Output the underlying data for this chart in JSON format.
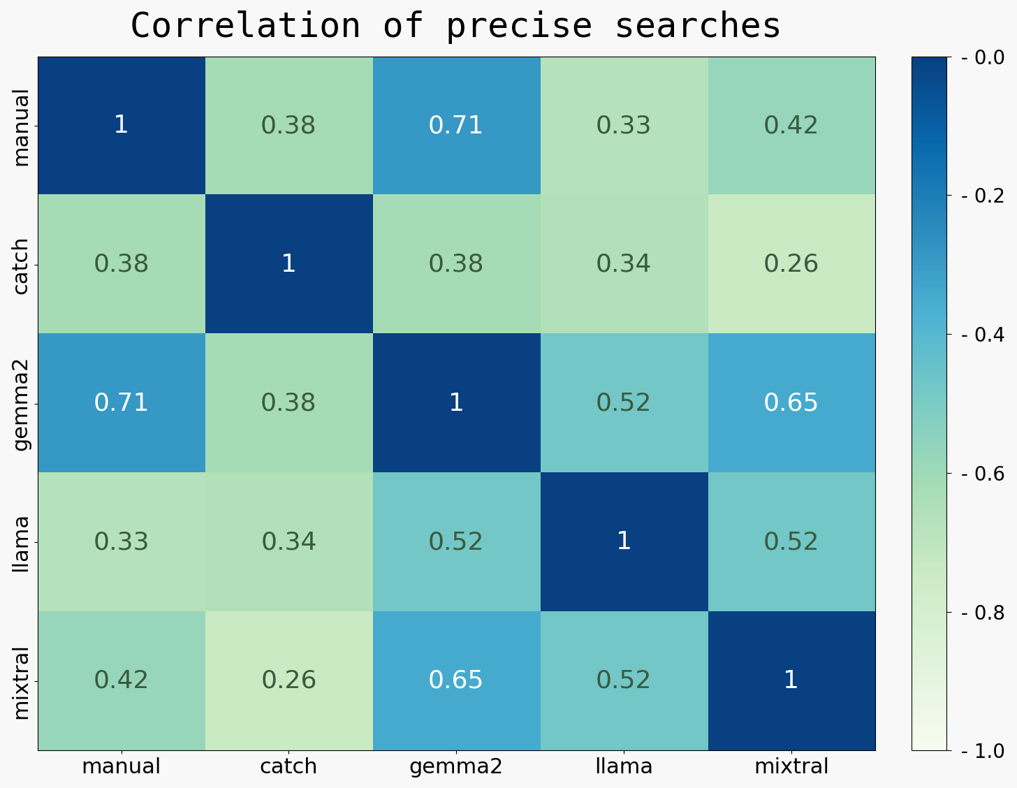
{
  "title": "Correlation of precise searches",
  "labels": [
    "manual",
    "catch",
    "gemma2",
    "llama",
    "mixtral"
  ],
  "matrix": [
    [
      1.0,
      0.38,
      0.71,
      0.33,
      0.42
    ],
    [
      0.38,
      1.0,
      0.38,
      0.34,
      0.26
    ],
    [
      0.71,
      0.38,
      1.0,
      0.52,
      0.65
    ],
    [
      0.33,
      0.34,
      0.52,
      1.0,
      0.52
    ],
    [
      0.42,
      0.26,
      0.65,
      0.52,
      1.0
    ]
  ],
  "vmin": 0.0,
  "vmax": 1.0,
  "cmap": "GnBu",
  "title_fontsize": 36,
  "label_fontsize": 22,
  "annot_fontsize": 26,
  "colorbar_tick_fontsize": 20,
  "figsize": [
    14.56,
    11.28
  ],
  "dpi": 100,
  "text_threshold": 0.58,
  "dark_text_color": "#3a5a40",
  "light_text_color": "white",
  "bg_color": "#f8f8f8"
}
